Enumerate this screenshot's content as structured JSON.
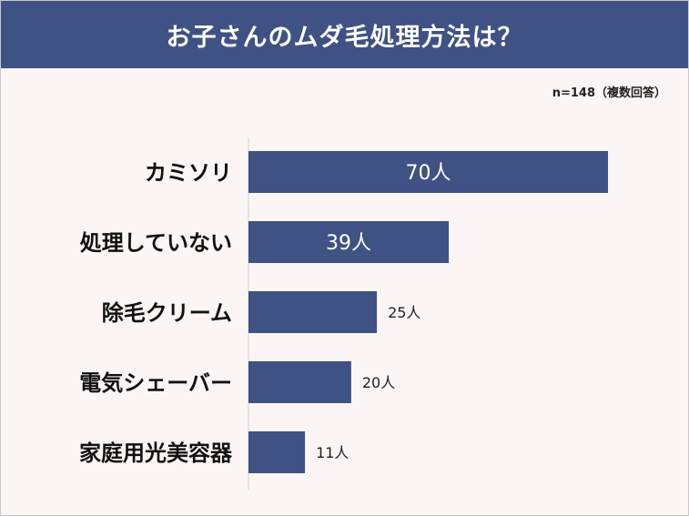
{
  "title": "お子さんのムダ毛処理方法は？",
  "note": "n=148（複数回答）",
  "colors": {
    "header": "#3f5284",
    "bar": "#3f5284",
    "background": "#fbf5f4"
  },
  "chart_data": {
    "type": "bar",
    "orientation": "horizontal",
    "categories": [
      "カミソリ",
      "処理していない",
      "除毛クリーム",
      "電気シェーバー",
      "家庭用光美容器"
    ],
    "values": [
      70,
      39,
      25,
      20,
      11
    ],
    "value_labels": [
      "70人",
      "39人",
      "25人",
      "20人",
      "11人"
    ],
    "unit": "人",
    "xlim": [
      0,
      70
    ]
  }
}
